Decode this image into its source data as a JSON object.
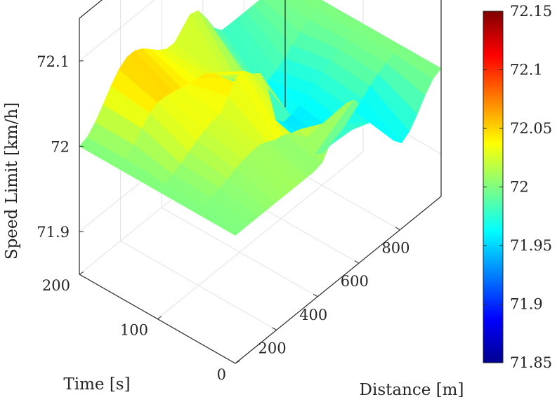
{
  "chart_data": {
    "type": "surface",
    "title": "",
    "xlabel": "Distance [m]",
    "ylabel": "Time [s]",
    "zlabel": "Speed Limit [km/h]",
    "xlim": [
      0,
      1000
    ],
    "ylim": [
      0,
      200
    ],
    "zlim": [
      71.85,
      72.15
    ],
    "x_ticks": [
      200,
      400,
      600,
      800
    ],
    "y_ticks": [
      0,
      100,
      200
    ],
    "z_ticks": [
      71.9,
      72,
      72.1
    ],
    "grid": true,
    "colormap": "jet",
    "colorbar": {
      "range": [
        71.85,
        72.15
      ],
      "ticks": [
        71.85,
        71.9,
        71.95,
        72,
        72.05,
        72.1,
        72.15
      ]
    },
    "baseline": 72,
    "rows": [
      {
        "time": 200,
        "x": [
          0,
          250,
          450,
          550,
          700,
          1000
        ],
        "speed": [
          72,
          72.06,
          72.03,
          72.05,
          72,
          72
        ]
      },
      {
        "time": 150,
        "x": [
          0,
          200,
          400,
          600,
          700,
          1000
        ],
        "speed": [
          72,
          72.04,
          72.03,
          71.99,
          71.96,
          72
        ]
      },
      {
        "time": 100,
        "x": [
          0,
          300,
          400,
          500,
          600,
          1000
        ],
        "speed": [
          72,
          72.03,
          72.06,
          72.04,
          71.96,
          72
        ]
      },
      {
        "time": 50,
        "x": [
          0,
          300,
          400,
          500,
          600,
          1000
        ],
        "speed": [
          72,
          72.02,
          72.01,
          72,
          71.95,
          72
        ]
      },
      {
        "time": 0,
        "x": [
          0,
          300,
          400,
          550,
          700,
          800,
          1000
        ],
        "speed": [
          72,
          72,
          72,
          72.05,
          72,
          71.95,
          72
        ]
      }
    ]
  }
}
